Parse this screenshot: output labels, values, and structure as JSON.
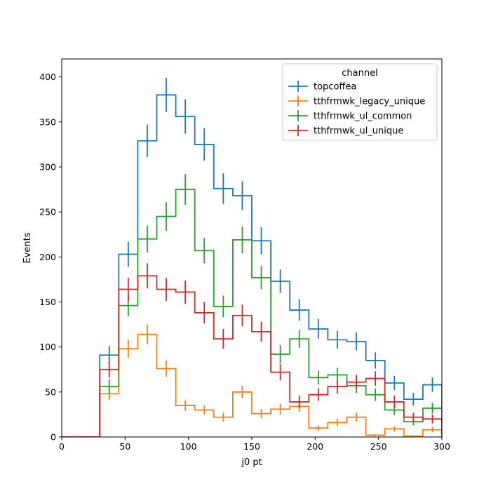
{
  "chart_data": {
    "type": "histogram-step",
    "xlabel": "j0 pt",
    "ylabel": "Events",
    "xlim": [
      0,
      300
    ],
    "ylim": [
      0,
      420
    ],
    "xticks": [
      0,
      50,
      100,
      150,
      200,
      250,
      300
    ],
    "yticks": [
      0,
      50,
      100,
      150,
      200,
      250,
      300,
      350,
      400
    ],
    "grid": false,
    "legend": {
      "title": "channel",
      "placement": "top-right"
    },
    "bin_edges": [
      0,
      30,
      45,
      60,
      75,
      90,
      105,
      120,
      135,
      150,
      165,
      180,
      195,
      210,
      225,
      240,
      255,
      270,
      285,
      300
    ],
    "series": [
      {
        "name": "topcoffea",
        "color": "#1f77b4",
        "values": [
          0,
          91,
          203,
          329,
          380,
          356,
          325,
          276,
          268,
          218,
          173,
          141,
          120,
          108,
          106,
          85,
          60,
          42,
          58
        ],
        "errors": [
          0,
          10,
          14,
          18,
          19,
          19,
          18,
          17,
          16,
          15,
          13,
          12,
          11,
          10,
          10,
          9,
          8,
          7,
          8
        ]
      },
      {
        "name": "tthfrmwk_legacy_unique",
        "color": "#ff7f0e",
        "values": [
          0,
          48,
          98,
          114,
          76,
          35,
          30,
          22,
          50,
          26,
          31,
          34,
          10,
          16,
          22,
          2,
          9,
          1,
          8
        ],
        "errors": [
          0,
          7,
          10,
          11,
          9,
          6,
          5,
          5,
          7,
          5,
          6,
          6,
          3,
          4,
          5,
          1,
          3,
          1,
          3
        ]
      },
      {
        "name": "tthfrmwk_ul_common",
        "color": "#2ca02c",
        "values": [
          0,
          56,
          146,
          220,
          245,
          275,
          207,
          145,
          219,
          177,
          92,
          109,
          66,
          69,
          57,
          47,
          30,
          17,
          32
        ],
        "errors": [
          0,
          8,
          12,
          15,
          16,
          17,
          14,
          12,
          15,
          13,
          10,
          10,
          8,
          8,
          8,
          7,
          6,
          4,
          6
        ]
      },
      {
        "name": "tthfrmwk_ul_unique",
        "color": "#d62728",
        "values": [
          0,
          75,
          164,
          179,
          164,
          161,
          138,
          109,
          135,
          117,
          72,
          39,
          47,
          56,
          61,
          65,
          39,
          22,
          20
        ],
        "errors": [
          0,
          9,
          13,
          14,
          13,
          13,
          12,
          11,
          12,
          11,
          9,
          7,
          7,
          8,
          8,
          8,
          7,
          5,
          5
        ]
      }
    ]
  }
}
